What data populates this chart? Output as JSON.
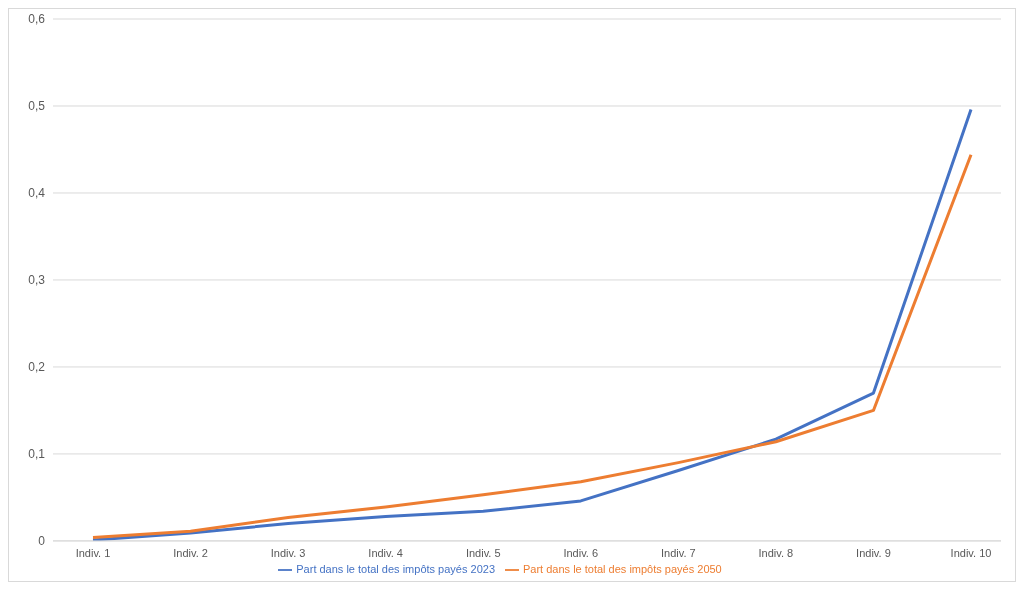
{
  "chart_data": {
    "type": "line",
    "categories": [
      "Indiv. 1",
      "Indiv. 2",
      "Indiv. 3",
      "Indiv. 4",
      "Indiv. 5",
      "Indiv. 6",
      "Indiv. 7",
      "Indiv. 8",
      "Indiv. 9",
      "Indiv. 10"
    ],
    "series": [
      {
        "name": "Part dans le total des impôts payés 2023",
        "color": "#4472c4",
        "values": [
          0.001,
          0.009,
          0.02,
          0.028,
          0.034,
          0.046,
          0.081,
          0.117,
          0.17,
          0.496
        ]
      },
      {
        "name": "Part dans le total des impôts payés 2050",
        "color": "#ed7d31",
        "values": [
          0.004,
          0.011,
          0.027,
          0.039,
          0.053,
          0.068,
          0.09,
          0.114,
          0.15,
          0.444
        ]
      }
    ],
    "ylim": [
      0,
      0.6
    ],
    "yticks": [
      0,
      {
        "value": 0.1,
        "label": "0,1"
      },
      {
        "value": 0.2,
        "label": "0,2"
      },
      {
        "value": 0.3,
        "label": "0,3"
      },
      {
        "value": 0.4,
        "label": "0,4"
      },
      {
        "value": 0.5,
        "label": "0,5"
      },
      {
        "value": 0.6,
        "label": "0,6"
      }
    ],
    "grid": "y",
    "legend": "bottom",
    "marker": "none",
    "line_style": "solid"
  }
}
